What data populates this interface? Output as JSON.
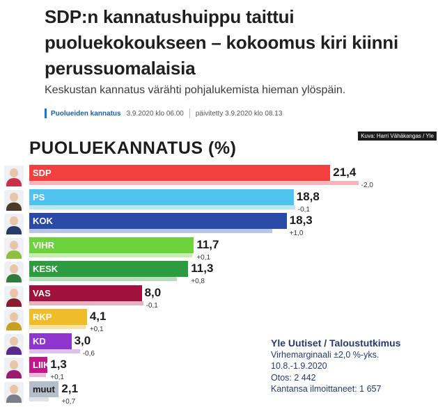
{
  "article": {
    "headline": "SDP:n kannatushuippu taittui puoluekokoukseen – kokoomus kiri kiinni perussuomalaisia",
    "lead": "Keskustan kannatus värähti pohjalukemista hieman ylöspäin.",
    "category": "Puolueiden kannatus",
    "published": "3.9.2020 klo 06.00",
    "updated": "päivitetty 3.9.2020 klo 08.13"
  },
  "graphic": {
    "credit": "Kuva: Harri Vähäkangas / Yle",
    "title": "PUOLUEKANNATUS (%)",
    "source": {
      "title": "Yle Uutiset / Taloustutkimus",
      "lines": [
        "Virhemarginaali ±2,0 %-yks.",
        "10.8.-1.9.2020",
        "Otos: 2 442",
        "Kantansa ilmoittaneet: 1 657"
      ]
    }
  },
  "chart_data": {
    "type": "bar",
    "title": "PUOLUEKANNATUS (%)",
    "categories": [
      "SDP",
      "PS",
      "KOK",
      "VIHR",
      "KESK",
      "VAS",
      "RKP",
      "KD",
      "LIIK",
      "muut"
    ],
    "series": [
      {
        "values": [
          21.4,
          18.8,
          18.3,
          11.7,
          11.3,
          8.0,
          4.1,
          3.0,
          1.3,
          2.1
        ]
      },
      {
        "values": [
          23.4,
          18.9,
          17.3,
          11.6,
          10.5,
          8.1,
          4.0,
          3.6,
          1.2,
          1.4
        ]
      }
    ],
    "value_labels": [
      "21,4",
      "18,8",
      "18,3",
      "11,7",
      "11,3",
      "8,0",
      "4,1",
      "3,0",
      "1,3",
      "2,1"
    ],
    "change_labels": [
      "-2,0",
      "-0,1",
      "+1,0",
      "+0,1",
      "+0,8",
      "-0,1",
      "+0,1",
      "-0,6",
      "+0,1",
      "+0,7"
    ],
    "colors": [
      "#f2403f",
      "#4fc3ee",
      "#2a4aa8",
      "#6ed23e",
      "#2d9b3f",
      "#a0123c",
      "#f0bc28",
      "#8f36cf",
      "#c2178a",
      "#b5bfca"
    ],
    "prev_colors": [
      "#f7b5bc",
      "#bfe6f6",
      "#b9c5e5",
      "#c8edb2",
      "#b5ddb9",
      "#e2b3c4",
      "#f7e2a3",
      "#dbc1ef",
      "#e9b7d8",
      "#dfe3e8"
    ],
    "avatar_colors": [
      "#c8304a",
      "#4a3a2a",
      "#253a6a",
      "#8fbf3f",
      "#2f7a3c",
      "#8a1a30",
      "#c8a020",
      "#5a2a8a",
      "#9a1a70",
      "#7a7f88"
    ],
    "label_colors": [
      "#ffffff",
      "#ffffff",
      "#ffffff",
      "#ffffff",
      "#ffffff",
      "#ffffff",
      "#ffffff",
      "#ffffff",
      "#ffffff",
      "#1c1c1c"
    ],
    "xlim": [
      0,
      25
    ]
  }
}
